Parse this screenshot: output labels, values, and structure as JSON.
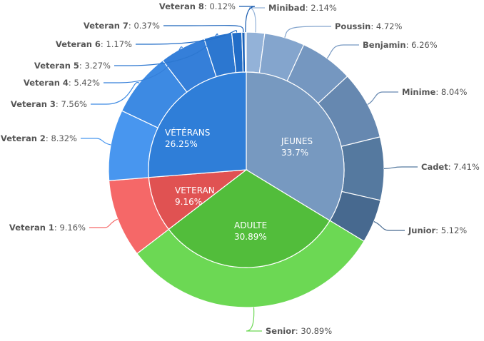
{
  "chart_data": {
    "type": "pie",
    "subtype": "donut-sunburst",
    "inner": [
      {
        "name": "JEUNES",
        "value": 33.7,
        "label": "33.7%",
        "color": "#7799c0"
      },
      {
        "name": "ADULTE",
        "value": 30.89,
        "label": "30.89%",
        "color": "#52bd3b"
      },
      {
        "name": "VETERAN",
        "value": 9.16,
        "label": "9.16%",
        "color": "#e05252"
      },
      {
        "name": "VÉTÉRANS",
        "value": 26.25,
        "label": "26.25%",
        "color": "#2f7ed8"
      }
    ],
    "outer": [
      {
        "name": "Minibad",
        "value": 2.14,
        "label": "2.14%",
        "color": "#93b2d8"
      },
      {
        "name": "Poussin",
        "value": 4.72,
        "label": "4.72%",
        "color": "#84a5cd"
      },
      {
        "name": "Benjamin",
        "value": 6.26,
        "label": "6.26%",
        "color": "#7597c0"
      },
      {
        "name": "Minime",
        "value": 8.04,
        "label": "8.04%",
        "color": "#6688b0"
      },
      {
        "name": "Cadet",
        "value": 7.41,
        "label": "7.41%",
        "color": "#55799f"
      },
      {
        "name": "Junior",
        "value": 5.12,
        "label": "5.12%",
        "color": "#47698f"
      },
      {
        "name": "Senior",
        "value": 30.89,
        "label": "30.89%",
        "color": "#6cd854"
      },
      {
        "name": "Veteran 1",
        "value": 9.16,
        "label": "9.16%",
        "color": "#f56868"
      },
      {
        "name": "Veteran 2",
        "value": 8.32,
        "label": "8.32%",
        "color": "#4896ef"
      },
      {
        "name": "Veteran 3",
        "value": 7.56,
        "label": "7.56%",
        "color": "#3d8ae3"
      },
      {
        "name": "Veteran 4",
        "value": 5.42,
        "label": "5.42%",
        "color": "#357fd9"
      },
      {
        "name": "Veteran 5",
        "value": 3.27,
        "label": "3.27%",
        "color": "#2c77d0"
      },
      {
        "name": "Veteran 6",
        "value": 1.17,
        "label": "1.17%",
        "color": "#226dc7"
      },
      {
        "name": "Veteran 7",
        "value": 0.37,
        "label": "0.37%",
        "color": "#1b63bb"
      },
      {
        "name": "Veteran 8",
        "value": 0.12,
        "label": "0.12%",
        "color": "#1559ae"
      }
    ]
  }
}
